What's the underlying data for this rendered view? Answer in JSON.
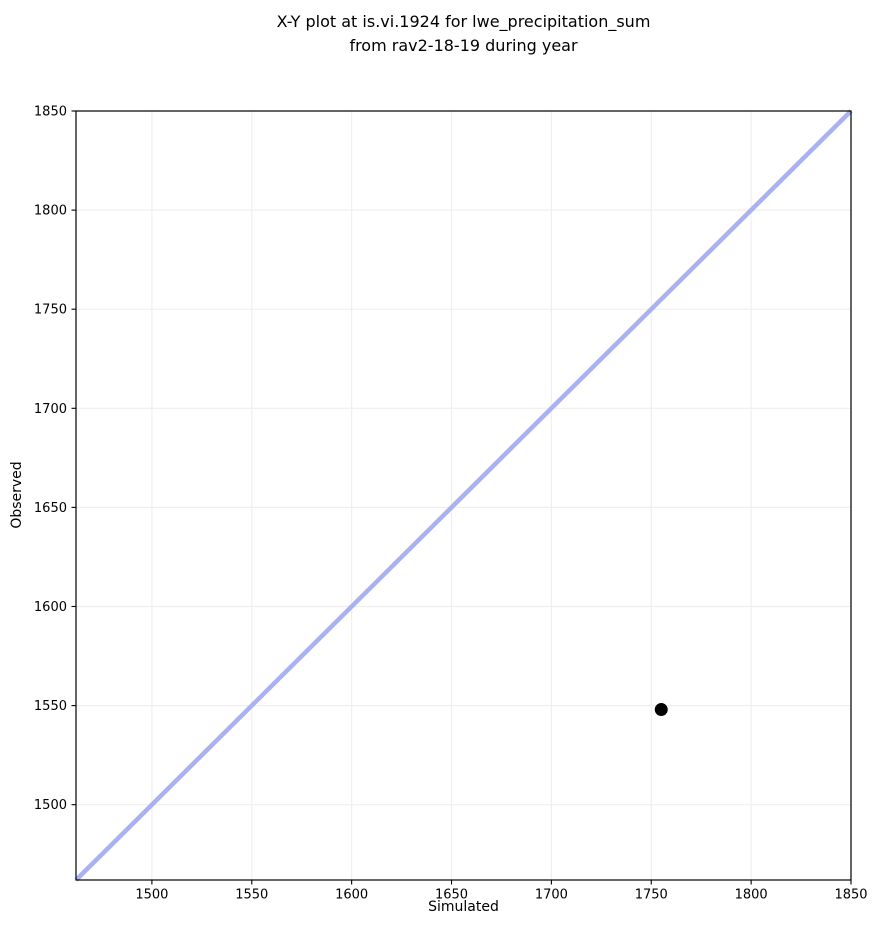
{
  "chart_data": {
    "type": "scatter",
    "title": "X-Y plot at is.vi.1924 for lwe_precipitation_sum\nfrom rav2-18-19 during year",
    "title_line1": "X-Y plot at is.vi.1924 for lwe_precipitation_sum",
    "title_line2": "from rav2-18-19 during year",
    "xlabel": "Simulated",
    "ylabel": "Observed",
    "xlim": [
      1462,
      1850
    ],
    "ylim": [
      1462,
      1850
    ],
    "xticks": [
      1500,
      1550,
      1600,
      1650,
      1700,
      1750,
      1800,
      1850
    ],
    "yticks": [
      1500,
      1550,
      1600,
      1650,
      1700,
      1750,
      1800,
      1850
    ],
    "grid": true,
    "legend": false,
    "series": [
      {
        "name": "identity_line",
        "type": "line",
        "x": [
          1462,
          1850
        ],
        "y": [
          1462,
          1850
        ],
        "color": "#aab1f2",
        "line_width": 4.5
      },
      {
        "name": "observed_vs_simulated_point",
        "type": "scatter",
        "x": [
          1755
        ],
        "y": [
          1548
        ],
        "color": "#000000",
        "marker": "circle",
        "marker_radius": 6.5
      }
    ],
    "colors": {
      "background": "#ffffff",
      "grid": "#efefef",
      "spine": "#000000",
      "tick": "#000000",
      "text": "#000000"
    }
  }
}
